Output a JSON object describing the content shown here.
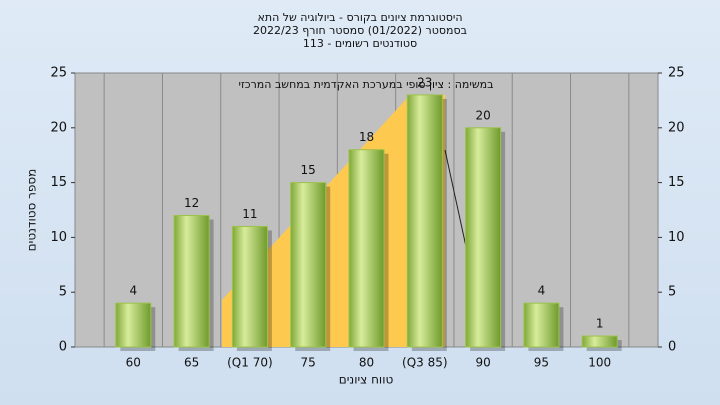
{
  "chart_data": {
    "type": "bar",
    "title": [
      "היסטוגרמת ציונים בקורס - ביולוגיה של התא",
      "בסמסטר (01/2022)  סמסטר חורף 2022/23",
      "סטודנטים רשומים - 113"
    ],
    "annotation": "במשימה : ציון סופי במערכת האקדמית במחשב המרכזי",
    "x_label": "טווח ציונים",
    "y_label": "מספר סטודנטים",
    "categories": [
      "60",
      "65",
      "(Q1 70)",
      "75",
      "80",
      "(Q3 85)",
      "90",
      "95",
      "100"
    ],
    "values": [
      4,
      12,
      11,
      15,
      18,
      23,
      20,
      4,
      1
    ],
    "color": "#9cc24a",
    "ylim": [
      0,
      25
    ],
    "yticks": [
      0,
      5,
      10,
      15,
      20,
      25
    ],
    "y2lim": [
      0,
      25
    ],
    "y2ticks": [
      0,
      5,
      10,
      15,
      20,
      25
    ]
  }
}
